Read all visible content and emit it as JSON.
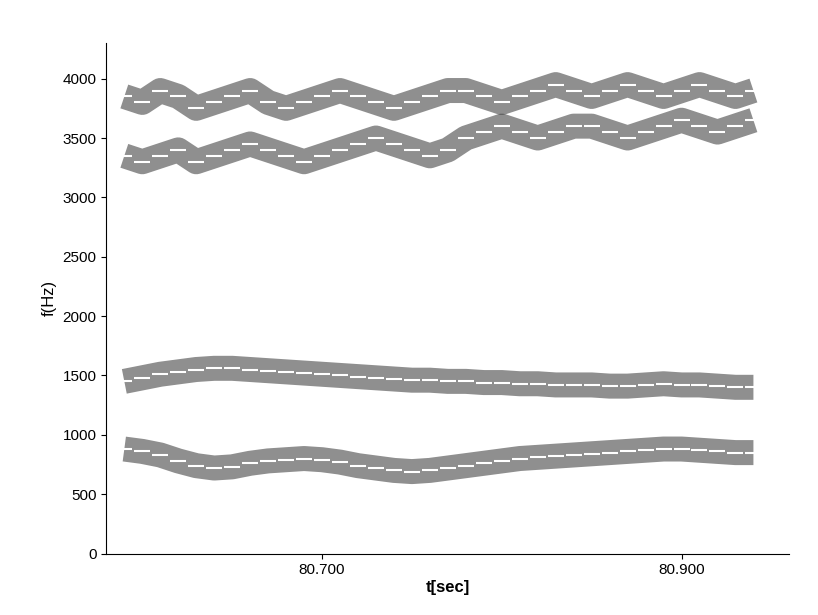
{
  "chart_data": {
    "type": "scatter",
    "x_label": "t[sec]",
    "y_label": "f(Hz)",
    "x": [
      80.59,
      80.6,
      80.61,
      80.62,
      80.63,
      80.64,
      80.65,
      80.66,
      80.67,
      80.68,
      80.69,
      80.7,
      80.71,
      80.72,
      80.73,
      80.74,
      80.75,
      80.76,
      80.77,
      80.78,
      80.79,
      80.8,
      80.81,
      80.82,
      80.83,
      80.84,
      80.85,
      80.86,
      80.87,
      80.88,
      80.89,
      80.9,
      80.91,
      80.92,
      80.93,
      80.94
    ],
    "series": [
      {
        "color": "#ffffff",
        "marker": "_",
        "values": [
          880,
          860,
          830,
          780,
          740,
          720,
          730,
          760,
          780,
          790,
          800,
          790,
          770,
          740,
          720,
          700,
          690,
          700,
          720,
          740,
          760,
          780,
          800,
          810,
          820,
          830,
          840,
          850,
          860,
          870,
          880,
          880,
          870,
          860,
          850,
          850
        ]
      },
      {
        "color": "#ffffff",
        "marker": "_",
        "values": [
          1450,
          1480,
          1510,
          1530,
          1550,
          1560,
          1560,
          1550,
          1540,
          1530,
          1520,
          1510,
          1500,
          1490,
          1480,
          1470,
          1460,
          1460,
          1450,
          1450,
          1440,
          1440,
          1430,
          1430,
          1420,
          1420,
          1420,
          1410,
          1410,
          1420,
          1430,
          1420,
          1420,
          1410,
          1400,
          1400
        ]
      },
      {
        "color": "#ffffff",
        "marker": "_",
        "values": [
          3350,
          3300,
          3350,
          3400,
          3300,
          3350,
          3400,
          3450,
          3400,
          3350,
          3300,
          3350,
          3400,
          3450,
          3500,
          3450,
          3400,
          3350,
          3400,
          3500,
          3550,
          3600,
          3550,
          3500,
          3550,
          3600,
          3600,
          3550,
          3500,
          3550,
          3600,
          3650,
          3600,
          3550,
          3600,
          3650
        ]
      },
      {
        "color": "#ffffff",
        "marker": "_",
        "values": [
          3850,
          3800,
          3900,
          3850,
          3750,
          3800,
          3850,
          3900,
          3800,
          3750,
          3800,
          3850,
          3900,
          3850,
          3800,
          3750,
          3800,
          3850,
          3900,
          3900,
          3850,
          3800,
          3850,
          3900,
          3950,
          3900,
          3850,
          3900,
          3950,
          3900,
          3850,
          3900,
          3950,
          3900,
          3850,
          3900
        ]
      }
    ],
    "xlim": [
      80.58,
      80.96
    ],
    "ylim": [
      0,
      4300
    ],
    "xticks": [
      {
        "value": 80.7,
        "label": "80.700"
      },
      {
        "value": 80.9,
        "label": "80.900"
      }
    ],
    "yticks": [
      0,
      500,
      1000,
      1500,
      2000,
      2500,
      3000,
      3500,
      4000
    ],
    "grid": false
  }
}
